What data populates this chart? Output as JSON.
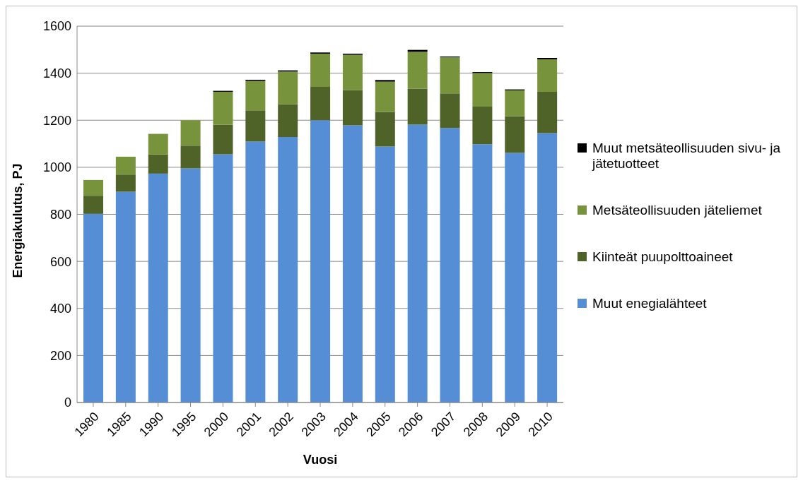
{
  "chart_data": {
    "type": "bar",
    "stacked": true,
    "xlabel": "Vuosi",
    "ylabel": "Energiakulutus, PJ",
    "categories": [
      "1980",
      "1985",
      "1990",
      "1995",
      "2000",
      "2001",
      "2002",
      "2003",
      "2004",
      "2005",
      "2006",
      "2007",
      "2008",
      "2009",
      "2010"
    ],
    "series": [
      {
        "name": "Muut enegialähteet",
        "color": "#558ed5",
        "values": [
          802,
          896,
          973,
          995,
          1055,
          1109,
          1129,
          1200,
          1178,
          1088,
          1181,
          1167,
          1098,
          1061,
          1145
        ]
      },
      {
        "name": "Kiinteät puupolttoaineet",
        "color": "#4f6228",
        "values": [
          77,
          73,
          82,
          97,
          126,
          133,
          139,
          142,
          150,
          147,
          153,
          147,
          160,
          156,
          176
        ]
      },
      {
        "name": "Metsäteollisuuden jäteliemet",
        "color": "#77933c",
        "values": [
          67,
          76,
          87,
          108,
          140,
          125,
          139,
          141,
          150,
          129,
          157,
          154,
          143,
          110,
          138
        ]
      },
      {
        "name": "Muut metsäteollisuuden sivu- ja jätetuotteet",
        "color": "#000000",
        "values": [
          0,
          0,
          0,
          0,
          4,
          5,
          5,
          5,
          5,
          7,
          8,
          3,
          4,
          4,
          6
        ]
      }
    ],
    "ylim": [
      0,
      1600
    ],
    "yticks": [
      0,
      200,
      400,
      600,
      800,
      1000,
      1200,
      1400,
      1600
    ],
    "grid": "y",
    "legend": "right"
  }
}
